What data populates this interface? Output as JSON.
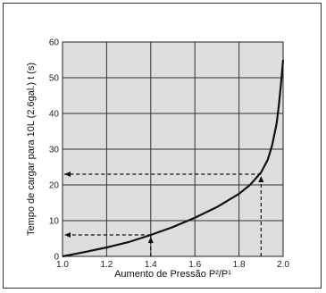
{
  "chart_data": {
    "type": "line",
    "xlabel": "Aumento de Pressão P²/P¹",
    "ylabel": "Tempo de cargar para 10L (2.6gal.) t (s)",
    "xlim": [
      1.0,
      2.0
    ],
    "ylim": [
      0,
      60
    ],
    "x_ticks": [
      "1.0",
      "1.2",
      "1.4",
      "1.6",
      "1.8",
      "2.0"
    ],
    "y_ticks": [
      "0",
      "10",
      "20",
      "30",
      "40",
      "50",
      "60"
    ],
    "grid": true,
    "series": [
      {
        "x": [
          1.0,
          1.1,
          1.2,
          1.3,
          1.4,
          1.5,
          1.6,
          1.7,
          1.8,
          1.85,
          1.9,
          1.93,
          1.95,
          1.97,
          1.98,
          1.99,
          2.0
        ],
        "y": [
          0,
          1.2,
          2.5,
          4.0,
          6.0,
          8.2,
          10.8,
          13.8,
          17.5,
          20.0,
          23.5,
          27.0,
          31.0,
          37.0,
          42.0,
          48.0,
          55.0
        ]
      }
    ],
    "annotations": [
      {
        "type": "reference-path",
        "x": 1.4,
        "y": 6
      },
      {
        "type": "reference-path",
        "x": 1.9,
        "y": 23
      }
    ]
  }
}
